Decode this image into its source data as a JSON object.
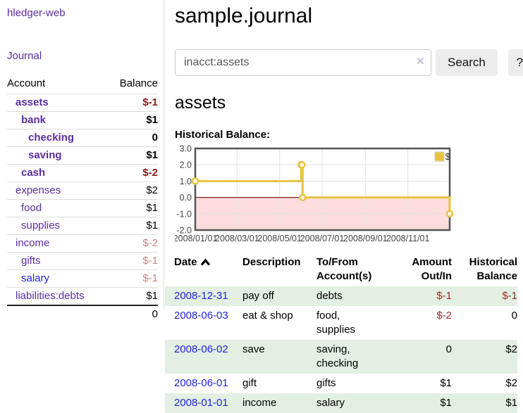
{
  "sidebar": {
    "brand": "hledger-web",
    "journal_label": "Journal",
    "header": {
      "account": "Account",
      "balance": "Balance"
    },
    "accounts": [
      {
        "name": "assets",
        "balance": "$-1",
        "indent": 1,
        "bold": true,
        "balance_class": "neg-strong"
      },
      {
        "name": "bank",
        "balance": "$1",
        "indent": 2,
        "bold": true,
        "balance_class": ""
      },
      {
        "name": "checking",
        "balance": "0",
        "indent": 3,
        "bold": true,
        "balance_class": ""
      },
      {
        "name": "saving",
        "balance": "$1",
        "indent": 3,
        "bold": true,
        "balance_class": ""
      },
      {
        "name": "cash",
        "balance": "$-2",
        "indent": 2,
        "bold": true,
        "balance_class": "neg-strong"
      },
      {
        "name": "expenses",
        "balance": "$2",
        "indent": 1,
        "bold": false,
        "balance_class": ""
      },
      {
        "name": "food",
        "balance": "$1",
        "indent": 2,
        "bold": false,
        "balance_class": ""
      },
      {
        "name": "supplies",
        "balance": "$1",
        "indent": 2,
        "bold": false,
        "balance_class": ""
      },
      {
        "name": "income",
        "balance": "$-2",
        "indent": 1,
        "bold": false,
        "balance_class": "neg-soft"
      },
      {
        "name": "gifts",
        "balance": "$-1",
        "indent": 2,
        "bold": false,
        "balance_class": "neg-soft"
      },
      {
        "name": "salary",
        "balance": "$-1",
        "indent": 2,
        "bold": false,
        "balance_class": "neg-soft",
        "blue": true
      },
      {
        "name": "liabilities:debts",
        "balance": "$1",
        "indent": 1,
        "bold": false,
        "balance_class": ""
      }
    ],
    "total": "0"
  },
  "main": {
    "title": "sample.journal",
    "search": {
      "value": "inacct:assets",
      "clear_icon": "×",
      "button_label": "Search",
      "help_label": "?"
    },
    "account_title": "assets",
    "chart_label": "Historical Balance:"
  },
  "chart_data": {
    "type": "line",
    "title": "Historical Balance:",
    "step": true,
    "series": [
      {
        "name": "$",
        "color": "#e8c23f",
        "points": [
          [
            "2008-01-01",
            1
          ],
          [
            "2008-06-01",
            2
          ],
          [
            "2008-06-02",
            2
          ],
          [
            "2008-06-03",
            0
          ],
          [
            "2008-12-31",
            -1
          ]
        ]
      }
    ],
    "xlim": [
      "2008-01-01",
      "2008-12-31"
    ],
    "ylim": [
      -2,
      3
    ],
    "x_ticks": [
      "2008/01/01",
      "2008/03/01",
      "2008/05/01",
      "2008/07/01",
      "2008/09/01",
      "2008/11/01"
    ],
    "y_ticks": [
      "3.0",
      "2.0",
      "1.0",
      "0.0",
      "-1.0",
      "-2.0"
    ],
    "legend": {
      "label": "$",
      "position": "top-right"
    },
    "grid": true,
    "colors": {
      "gridline": "#e2e2e2",
      "border": "#545454",
      "negative_region": "#fcdcdc",
      "zero_line": "#8b1a1a",
      "tick_text": "#444444"
    }
  },
  "register": {
    "headers": [
      "Date",
      "Description",
      "To/From Account(s)",
      "Amount Out/In",
      "Historical Balance"
    ],
    "sort_icon": "sort-ascending",
    "rows": [
      {
        "date": "2008-12-31",
        "description": "pay off",
        "accounts": "debts",
        "amount": "$-1",
        "amount_neg": true,
        "balance": "$-1",
        "balance_neg": true
      },
      {
        "date": "2008-06-03",
        "description": "eat & shop",
        "accounts": "food, supplies",
        "amount": "$-2",
        "amount_neg": true,
        "balance": "0",
        "balance_neg": false
      },
      {
        "date": "2008-06-02",
        "description": "save",
        "accounts": "saving, checking",
        "amount": "0",
        "amount_neg": false,
        "balance": "$2",
        "balance_neg": false
      },
      {
        "date": "2008-06-01",
        "description": "gift",
        "accounts": "gifts",
        "amount": "$1",
        "amount_neg": false,
        "balance": "$2",
        "balance_neg": false
      },
      {
        "date": "2008-01-01",
        "description": "income",
        "accounts": "salary",
        "amount": "$1",
        "amount_neg": false,
        "balance": "$1",
        "balance_neg": false
      }
    ]
  }
}
